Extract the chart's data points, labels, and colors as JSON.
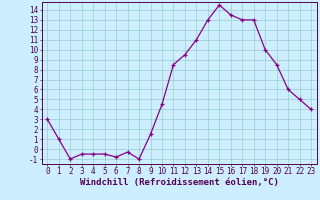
{
  "x": [
    0,
    1,
    2,
    3,
    4,
    5,
    6,
    7,
    8,
    9,
    10,
    11,
    12,
    13,
    14,
    15,
    16,
    17,
    18,
    19,
    20,
    21,
    22,
    23
  ],
  "y": [
    3,
    1,
    -1,
    -0.5,
    -0.5,
    -0.5,
    -0.8,
    -0.3,
    -1,
    1.5,
    4.5,
    8.5,
    9.5,
    11,
    13,
    14.5,
    13.5,
    13,
    13,
    10,
    8.5,
    6,
    5,
    4
  ],
  "line_color": "#880088",
  "marker": "+",
  "bg_color": "#cceeff",
  "grid_color": "#99cccc",
  "xlabel": "Windchill (Refroidissement éolien,°C)",
  "xlabel_color": "#550055",
  "ylabel_ticks": [
    -1,
    0,
    1,
    2,
    3,
    4,
    5,
    6,
    7,
    8,
    9,
    10,
    11,
    12,
    13,
    14
  ],
  "xticks": [
    0,
    1,
    2,
    3,
    4,
    5,
    6,
    7,
    8,
    9,
    10,
    11,
    12,
    13,
    14,
    15,
    16,
    17,
    18,
    19,
    20,
    21,
    22,
    23
  ],
  "ylim": [
    -1.5,
    14.8
  ],
  "xlim": [
    -0.5,
    23.5
  ],
  "tick_color": "#550055",
  "spine_color": "#550055",
  "fontsize_ticks": 5.5,
  "fontsize_xlabel": 6.5
}
